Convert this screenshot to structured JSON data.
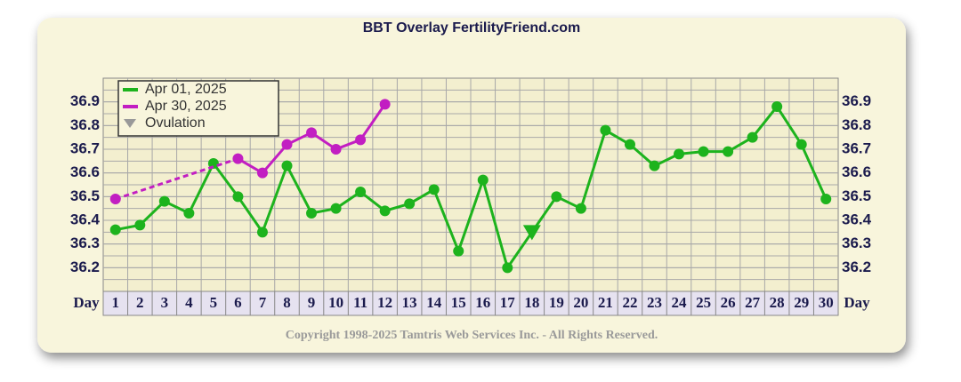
{
  "chart_data": {
    "type": "line",
    "title": "BBT Overlay FertilityFriend.com",
    "x_label": "Day",
    "categories": [
      "1",
      "2",
      "3",
      "4",
      "5",
      "6",
      "7",
      "8",
      "9",
      "10",
      "11",
      "12",
      "13",
      "14",
      "15",
      "16",
      "17",
      "18",
      "19",
      "20",
      "21",
      "22",
      "23",
      "24",
      "25",
      "26",
      "27",
      "28",
      "29",
      "30"
    ],
    "series": [
      {
        "name": "Apr 01, 2025",
        "color": "#1db31d",
        "values": [
          36.36,
          36.38,
          36.48,
          36.43,
          36.64,
          36.5,
          36.35,
          36.63,
          36.43,
          36.45,
          36.52,
          36.44,
          36.47,
          36.53,
          36.27,
          36.57,
          36.2,
          36.35,
          36.5,
          36.45,
          36.78,
          36.72,
          36.63,
          36.68,
          36.69,
          36.69,
          36.75,
          36.88,
          36.72,
          36.49
        ]
      },
      {
        "name": "Apr 30, 2025",
        "color": "#c21ec2",
        "values": [
          36.49,
          null,
          null,
          null,
          null,
          36.66,
          36.6,
          36.72,
          36.77,
          36.7,
          36.74,
          36.89,
          null,
          null,
          null,
          null,
          null,
          null,
          null,
          null,
          null,
          null,
          null,
          null,
          null,
          null,
          null,
          null,
          null,
          null
        ]
      }
    ],
    "ovulation": {
      "name": "Ovulation",
      "legend_color": "#999999",
      "day_index": 17,
      "series_index": 0
    },
    "ylim": [
      36.1,
      37.0
    ],
    "yticks": [
      36.2,
      36.3,
      36.4,
      36.5,
      36.6,
      36.7,
      36.8,
      36.9
    ],
    "grid_step": 0.05,
    "legend": "top-left",
    "footer": "Copyright 1998-2025 Tamtris Web Services Inc. - All Rights Reserved."
  }
}
